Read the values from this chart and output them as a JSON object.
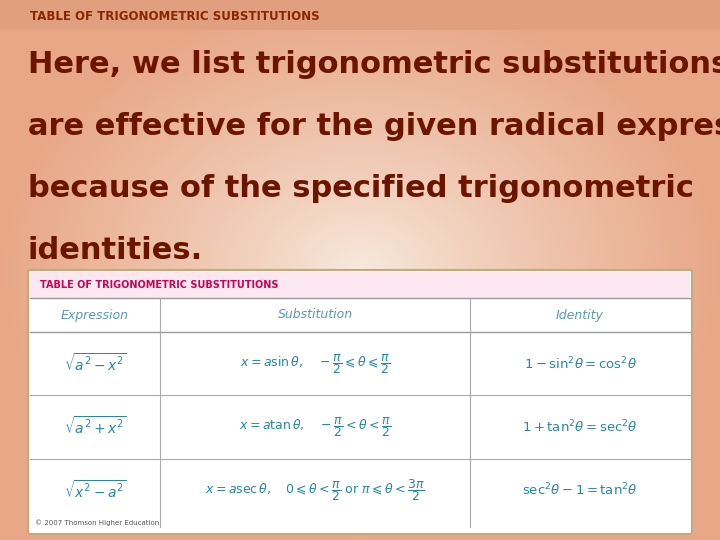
{
  "title": "TABLE OF TRIGONOMETRIC SUBSTITUTIONS",
  "body_lines": [
    "Here, we list trigonometric substitutions that",
    "are effective for the given radical expressions",
    "because of the specified trigonometric",
    "identities."
  ],
  "bg_color_edge": "#e8a888",
  "bg_color_center": "#f5e0d0",
  "title_bar_color": "#e8b090",
  "title_color": "#8B2500",
  "body_color": "#6B1500",
  "table_bg": "#ffffff",
  "table_border_color": "#c8a878",
  "table_title": "TABLE OF TRIGONOMETRIC SUBSTITUTIONS",
  "table_title_color": "#cc0055",
  "header_color": "#5599bb",
  "table_math_color": "#2288aa",
  "col_header": [
    "Expression",
    "Substitution",
    "Identity"
  ],
  "row1_expr": "$\\sqrt{a^2-x^2}$",
  "row1_sub": "$x = a\\sin\\theta, \\quad -\\dfrac{\\pi}{2} \\leqslant \\theta \\leqslant \\dfrac{\\pi}{2}$",
  "row1_id": "$1 - \\sin^2\\!\\theta = \\cos^2\\!\\theta$",
  "row2_expr": "$\\sqrt{a^2+x^2}$",
  "row2_sub": "$x = a\\tan\\theta, \\quad -\\dfrac{\\pi}{2} < \\theta < \\dfrac{\\pi}{2}$",
  "row2_id": "$1 + \\tan^2\\!\\theta = \\sec^2\\!\\theta$",
  "row3_expr": "$\\sqrt{x^2-a^2}$",
  "row3_sub": "$x = a\\sec\\theta, \\quad 0 \\leqslant \\theta < \\dfrac{\\pi}{2} \\text{ or } \\pi \\leqslant \\theta < \\dfrac{3\\pi}{2}$",
  "row3_id": "$\\sec^2\\!\\theta - 1 = \\tan^2\\!\\theta$",
  "footer": "© 2007 Thomson Higher Education"
}
